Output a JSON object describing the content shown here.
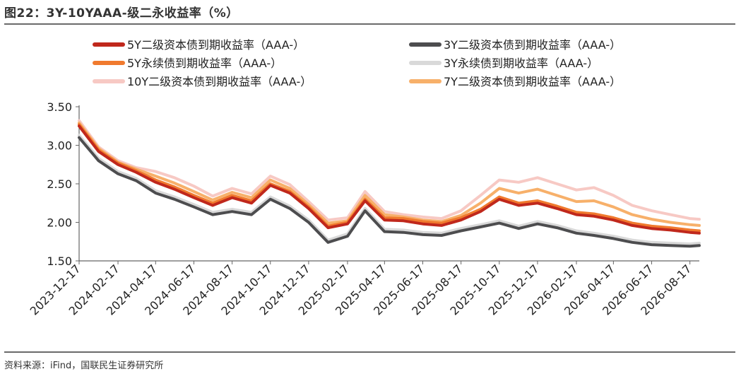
{
  "header": {
    "title": "图22：3Y-10YAAA-级二永收益率（%）"
  },
  "footer": {
    "source": "资料来源：iFind，国联民生证券研究所"
  },
  "chart_data": {
    "type": "line",
    "title": "图22：3Y-10YAAA-级二永收益率（%）",
    "xlabel": "",
    "ylabel": "",
    "ylim": [
      1.5,
      3.5
    ],
    "yticks": [
      "1.50",
      "2.00",
      "2.50",
      "3.00",
      "3.50"
    ],
    "x_ticks": [
      "2023-12-17",
      "2024-02-17",
      "2024-04-17",
      "2024-06-17",
      "2024-08-17",
      "2024-10-17",
      "2024-12-17",
      "2025-02-17",
      "2025-04-17",
      "2025-06-17",
      "2025-08-17",
      "2025-10-17",
      "2025-12-17",
      "2026-02-17",
      "2026-04-17",
      "2026-06-17",
      "2026-08-17"
    ],
    "grid": false,
    "legend_position": "top",
    "x": [
      "2023-12-17",
      "2024-01-17",
      "2024-02-17",
      "2024-03-17",
      "2024-04-17",
      "2024-05-17",
      "2024-06-17",
      "2024-07-17",
      "2024-08-17",
      "2024-09-17",
      "2024-10-17",
      "2024-11-17",
      "2024-12-17",
      "2025-01-17",
      "2025-02-17",
      "2025-03-17",
      "2025-04-17",
      "2025-05-17",
      "2025-06-17",
      "2025-07-17",
      "2025-08-17",
      "2025-09-17",
      "2025-10-17",
      "2025-11-17",
      "2025-12-17",
      "2026-01-17",
      "2026-02-17",
      "2026-03-17",
      "2026-04-17",
      "2026-05-17",
      "2026-06-17",
      "2026-07-17",
      "2026-08-17",
      "2026-09-01"
    ],
    "series": [
      {
        "name": "5Y二级资本债到期收益率（AAA-）",
        "color": "#c0281c",
        "width": 4,
        "values": [
          3.25,
          2.92,
          2.75,
          2.65,
          2.52,
          2.43,
          2.32,
          2.22,
          2.32,
          2.25,
          2.48,
          2.38,
          2.18,
          1.93,
          1.98,
          2.28,
          2.03,
          2.02,
          1.98,
          1.96,
          2.03,
          2.14,
          2.3,
          2.22,
          2.25,
          2.18,
          2.1,
          2.08,
          2.03,
          1.96,
          1.92,
          1.9,
          1.87,
          1.86
        ]
      },
      {
        "name": "3Y二级资本债到期收益率（AAA-）",
        "color": "#4d4d4f",
        "width": 4,
        "values": [
          3.1,
          2.8,
          2.63,
          2.54,
          2.38,
          2.3,
          2.2,
          2.1,
          2.14,
          2.1,
          2.3,
          2.18,
          2.0,
          1.74,
          1.82,
          2.15,
          1.88,
          1.87,
          1.84,
          1.83,
          1.89,
          1.94,
          1.99,
          1.92,
          1.98,
          1.93,
          1.86,
          1.83,
          1.79,
          1.74,
          1.71,
          1.7,
          1.69,
          1.7
        ]
      },
      {
        "name": "5Y永续债到期收益率（AAA-）",
        "color": "#f07a2e",
        "width": 4,
        "values": [
          3.27,
          2.94,
          2.77,
          2.67,
          2.55,
          2.46,
          2.35,
          2.25,
          2.35,
          2.28,
          2.5,
          2.4,
          2.2,
          1.95,
          2.0,
          2.3,
          2.06,
          2.05,
          2.01,
          1.99,
          2.06,
          2.17,
          2.33,
          2.25,
          2.28,
          2.21,
          2.13,
          2.11,
          2.06,
          1.99,
          1.95,
          1.93,
          1.9,
          1.89
        ]
      },
      {
        "name": "3Y永续债到期收益率（AAA-）",
        "color": "#d9d9d9",
        "width": 4,
        "values": [
          3.13,
          2.83,
          2.66,
          2.57,
          2.41,
          2.33,
          2.23,
          2.13,
          2.17,
          2.13,
          2.33,
          2.21,
          2.03,
          1.77,
          1.85,
          2.18,
          1.91,
          1.9,
          1.87,
          1.86,
          1.92,
          1.97,
          2.02,
          1.95,
          2.01,
          1.96,
          1.89,
          1.86,
          1.82,
          1.77,
          1.74,
          1.73,
          1.72,
          1.73
        ]
      },
      {
        "name": "10Y二级资本债到期收益率（AAA-）",
        "color": "#f7c9c4",
        "width": 4,
        "values": [
          3.32,
          2.98,
          2.8,
          2.71,
          2.66,
          2.58,
          2.47,
          2.34,
          2.44,
          2.37,
          2.6,
          2.49,
          2.27,
          2.03,
          2.06,
          2.4,
          2.14,
          2.1,
          2.07,
          2.05,
          2.15,
          2.35,
          2.55,
          2.52,
          2.58,
          2.5,
          2.42,
          2.45,
          2.35,
          2.22,
          2.15,
          2.1,
          2.05,
          2.04
        ]
      },
      {
        "name": "7Y二级资本债到期收益率（AAA-）",
        "color": "#f7b06a",
        "width": 4,
        "values": [
          3.29,
          2.96,
          2.78,
          2.69,
          2.6,
          2.51,
          2.4,
          2.29,
          2.39,
          2.32,
          2.55,
          2.44,
          2.23,
          1.99,
          2.02,
          2.35,
          2.1,
          2.07,
          2.03,
          2.01,
          2.09,
          2.25,
          2.44,
          2.38,
          2.43,
          2.35,
          2.27,
          2.28,
          2.2,
          2.1,
          2.04,
          2.0,
          1.97,
          1.96
        ]
      }
    ]
  }
}
